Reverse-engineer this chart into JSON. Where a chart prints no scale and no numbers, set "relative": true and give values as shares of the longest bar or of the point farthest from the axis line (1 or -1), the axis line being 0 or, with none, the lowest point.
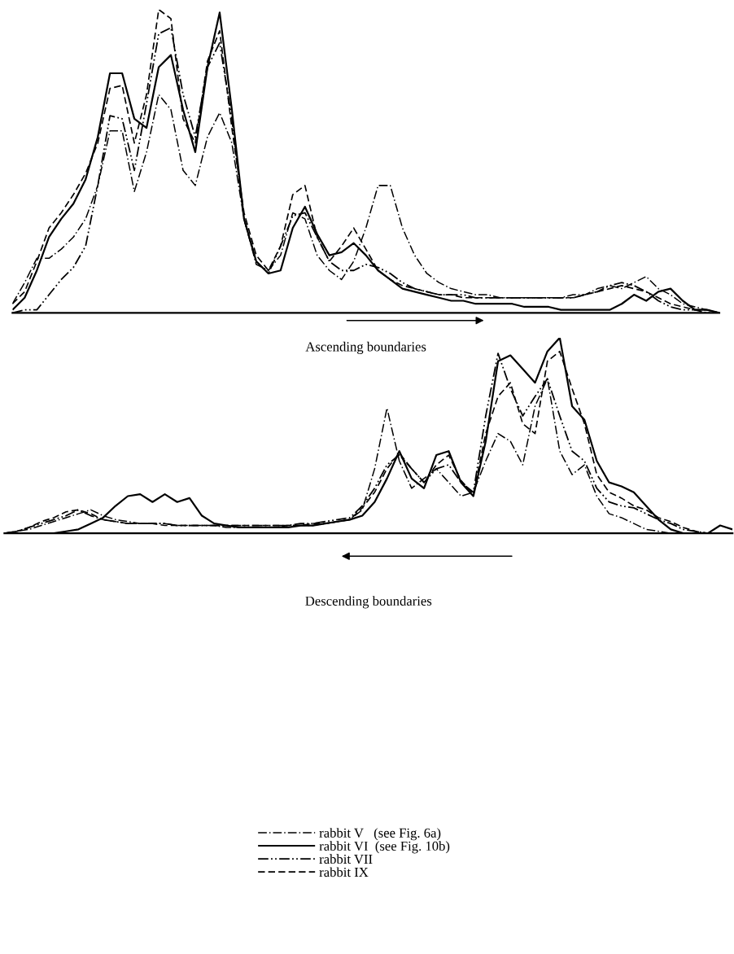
{
  "chart_data": [
    {
      "type": "line",
      "relative": true,
      "xlabel": "Ascending boundaries",
      "legend": false,
      "grid": false,
      "categories": [
        null,
        null,
        null,
        null,
        null,
        null,
        null,
        null,
        null,
        null,
        null,
        null,
        null,
        null,
        null,
        null,
        null,
        null,
        null,
        null,
        null,
        null,
        null,
        null,
        null,
        null,
        null,
        null,
        null,
        null,
        null,
        null,
        null,
        null,
        null,
        null,
        null,
        null,
        null,
        null,
        null,
        null,
        null,
        null,
        null,
        null,
        null,
        null,
        null,
        null,
        null,
        null,
        null,
        null,
        null,
        null,
        null,
        null,
        null
      ],
      "series": [
        {
          "color": "#000000",
          "line_style": "dashdot",
          "values": [
            0.03,
            0.1,
            0.18,
            0.18,
            0.21,
            0.25,
            0.31,
            0.42,
            0.6,
            0.6,
            0.4,
            0.53,
            0.72,
            0.67,
            0.47,
            0.42,
            0.58,
            0.66,
            0.56,
            0.31,
            0.16,
            0.14,
            0.19,
            0.33,
            0.31,
            0.19,
            0.14,
            0.11,
            0.17,
            0.28,
            0.42,
            0.42,
            0.28,
            0.19,
            0.13,
            0.1,
            0.08,
            0.07,
            0.06,
            0.06,
            0.05,
            0.05,
            0.05,
            0.05,
            0.05,
            0.05,
            0.06,
            0.06,
            0.08,
            0.09,
            0.08,
            0.1,
            0.12,
            0.08,
            0.06,
            0.03,
            0.02,
            0.01,
            0
          ]
        },
        {
          "color": "#000000",
          "line_style": "solid",
          "values": [
            0.01,
            0.05,
            0.14,
            0.25,
            0.31,
            0.36,
            0.44,
            0.58,
            0.79,
            0.79,
            0.64,
            0.61,
            0.81,
            0.85,
            0.67,
            0.53,
            0.81,
            0.99,
            0.67,
            0.31,
            0.17,
            0.13,
            0.14,
            0.28,
            0.35,
            0.26,
            0.19,
            0.2,
            0.23,
            0.19,
            0.14,
            0.11,
            0.08,
            0.07,
            0.06,
            0.05,
            0.04,
            0.04,
            0.03,
            0.03,
            0.03,
            0.03,
            0.02,
            0.02,
            0.02,
            0.01,
            0.01,
            0.01,
            0.01,
            0.01,
            0.03,
            0.06,
            0.04,
            0.07,
            0.08,
            0.04,
            0.01,
            0.01,
            0
          ]
        },
        {
          "color": "#000000",
          "line_style": "dashdotdot",
          "values": [
            0,
            0.01,
            0.01,
            0.06,
            0.11,
            0.15,
            0.22,
            0.42,
            0.65,
            0.64,
            0.47,
            0.69,
            0.92,
            0.94,
            0.72,
            0.58,
            0.81,
            0.89,
            0.64,
            0.31,
            0.17,
            0.13,
            0.22,
            0.32,
            0.33,
            0.25,
            0.17,
            0.14,
            0.14,
            0.16,
            0.15,
            0.13,
            0.1,
            0.08,
            0.07,
            0.06,
            0.06,
            0.06,
            0.05,
            0.05,
            0.05,
            0.05,
            0.05,
            0.05,
            0.05,
            0.05,
            0.05,
            0.06,
            0.07,
            0.09,
            0.1,
            0.09,
            0.07,
            0.04,
            0.02,
            0.01,
            0.01,
            0,
            0
          ]
        },
        {
          "color": "#000000",
          "line_style": "dashed",
          "values": [
            0.03,
            0.07,
            0.17,
            0.28,
            0.33,
            0.39,
            0.46,
            0.56,
            0.74,
            0.75,
            0.56,
            0.72,
            1,
            0.97,
            0.64,
            0.56,
            0.83,
            0.93,
            0.61,
            0.33,
            0.19,
            0.14,
            0.22,
            0.39,
            0.42,
            0.25,
            0.17,
            0.22,
            0.28,
            0.21,
            0.14,
            0.11,
            0.09,
            0.08,
            0.07,
            0.06,
            0.06,
            0.05,
            0.05,
            0.05,
            0.05,
            0.05,
            0.05,
            0.05,
            0.05,
            0.05,
            0.05,
            0.06,
            0.07,
            0.08,
            0.09,
            0.08,
            0.07,
            0.05,
            0.03,
            0.02,
            0.01,
            0.01,
            0
          ]
        }
      ]
    },
    {
      "type": "line",
      "relative": true,
      "xlabel": "Descending boundaries",
      "legend": "bottom",
      "grid": false,
      "categories": [
        null,
        null,
        null,
        null,
        null,
        null,
        null,
        null,
        null,
        null,
        null,
        null,
        null,
        null,
        null,
        null,
        null,
        null,
        null,
        null,
        null,
        null,
        null,
        null,
        null,
        null,
        null,
        null,
        null,
        null,
        null,
        null,
        null,
        null,
        null,
        null,
        null,
        null,
        null,
        null,
        null,
        null,
        null,
        null,
        null,
        null,
        null,
        null,
        null,
        null,
        null,
        null,
        null,
        null,
        null,
        null,
        null,
        null,
        null,
        null
      ],
      "series": [
        {
          "name": "rabbit V   (see Fig. 6a)",
          "color": "#000000",
          "line_style": "dashdot",
          "values": [
            0,
            0.01,
            0.02,
            0.04,
            0.06,
            0.08,
            0.1,
            0.12,
            0.09,
            0.07,
            0.06,
            0.05,
            0.05,
            0.05,
            0.04,
            0.04,
            0.04,
            0.04,
            0.03,
            0.03,
            0.03,
            0.03,
            0.03,
            0.04,
            0.04,
            0.04,
            0.05,
            0.06,
            0.07,
            0.12,
            0.33,
            0.64,
            0.37,
            0.23,
            0.28,
            0.33,
            0.26,
            0.19,
            0.21,
            0.37,
            0.51,
            0.47,
            0.35,
            0.65,
            0.79,
            0.42,
            0.3,
            0.35,
            0.19,
            0.1,
            0.08,
            0.05,
            0.02,
            0.01,
            0,
            0,
            0,
            0,
            0,
            0
          ]
        },
        {
          "name": "rabbit VI  (see Fig. 10b)",
          "color": "#000000",
          "line_style": "solid",
          "values": [
            0,
            0,
            0,
            0,
            0,
            0.01,
            0.02,
            0.05,
            0.08,
            0.14,
            0.19,
            0.2,
            0.16,
            0.2,
            0.16,
            0.18,
            0.09,
            0.05,
            0.04,
            0.03,
            0.03,
            0.03,
            0.03,
            0.03,
            0.04,
            0.04,
            0.05,
            0.06,
            0.07,
            0.09,
            0.16,
            0.28,
            0.42,
            0.28,
            0.23,
            0.4,
            0.42,
            0.26,
            0.19,
            0.47,
            0.88,
            0.91,
            0.84,
            0.77,
            0.93,
            1,
            0.65,
            0.58,
            0.37,
            0.26,
            0.24,
            0.21,
            0.14,
            0.07,
            0.02,
            0,
            0,
            0,
            0.04,
            0.02
          ]
        },
        {
          "name": "rabbit VII",
          "color": "#000000",
          "line_style": "dashdotdot",
          "values": [
            0,
            0.01,
            0.03,
            0.05,
            0.07,
            0.09,
            0.12,
            0.09,
            0.07,
            0.06,
            0.05,
            0.05,
            0.05,
            0.05,
            0.04,
            0.04,
            0.04,
            0.04,
            0.04,
            0.04,
            0.04,
            0.04,
            0.04,
            0.04,
            0.05,
            0.05,
            0.06,
            0.07,
            0.08,
            0.14,
            0.23,
            0.35,
            0.4,
            0.33,
            0.26,
            0.33,
            0.35,
            0.26,
            0.21,
            0.6,
            0.92,
            0.74,
            0.6,
            0.7,
            0.79,
            0.6,
            0.42,
            0.37,
            0.23,
            0.16,
            0.14,
            0.13,
            0.1,
            0.07,
            0.05,
            0.02,
            0.01,
            0,
            0,
            0
          ]
        },
        {
          "name": "rabbit IX",
          "color": "#000000",
          "line_style": "dashed",
          "values": [
            0,
            0.01,
            0.03,
            0.06,
            0.08,
            0.11,
            0.12,
            0.1,
            0.07,
            0.06,
            0.05,
            0.05,
            0.05,
            0.04,
            0.04,
            0.04,
            0.04,
            0.04,
            0.04,
            0.04,
            0.04,
            0.04,
            0.04,
            0.04,
            0.04,
            0.05,
            0.05,
            0.06,
            0.07,
            0.13,
            0.21,
            0.33,
            0.41,
            0.33,
            0.26,
            0.35,
            0.4,
            0.27,
            0.2,
            0.51,
            0.7,
            0.77,
            0.56,
            0.51,
            0.88,
            0.93,
            0.74,
            0.56,
            0.3,
            0.21,
            0.18,
            0.14,
            0.12,
            0.08,
            0.06,
            0.03,
            0.01,
            0,
            0,
            0
          ]
        }
      ]
    }
  ]
}
